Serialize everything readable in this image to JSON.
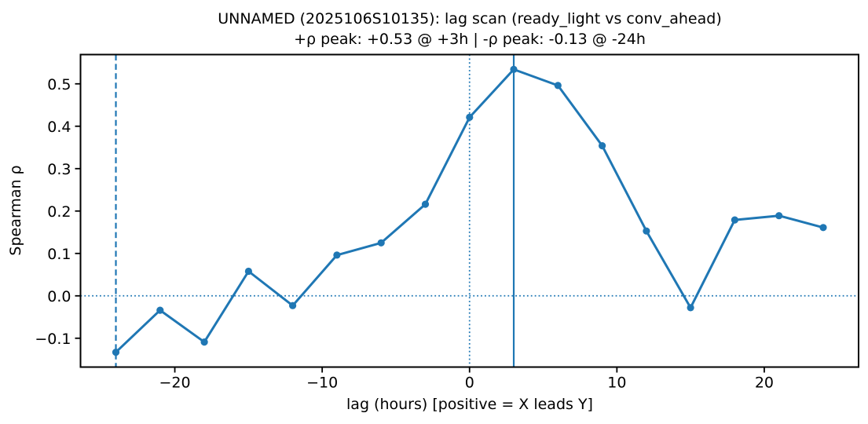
{
  "chart_data": {
    "type": "line",
    "title": "UNNAMED (2025106S10135): lag scan (ready_light vs conv_ahead)",
    "subtitle": "+ρ peak: +0.53 @ +3h | -ρ peak: -0.13 @ -24h",
    "xlabel": "lag (hours) [positive = X leads Y]",
    "ylabel": "Spearman ρ",
    "series": [
      {
        "name": "spearman_rho_vs_lag",
        "x": [
          -24,
          -21,
          -18,
          -15,
          -12,
          -9,
          -6,
          -3,
          0,
          3,
          6,
          9,
          12,
          15,
          18,
          21,
          24
        ],
        "y": [
          -0.133,
          -0.034,
          -0.109,
          0.058,
          -0.023,
          0.096,
          0.125,
          0.216,
          0.421,
          0.534,
          0.496,
          0.354,
          0.153,
          -0.028,
          0.179,
          0.189,
          0.161
        ]
      }
    ],
    "xlim": [
      -26.4,
      26.4
    ],
    "ylim": [
      -0.168,
      0.569
    ],
    "xticks": {
      "values": [
        -20,
        -10,
        0,
        10,
        20
      ],
      "labels": [
        "−20",
        "−10",
        "0",
        "10",
        "20"
      ]
    },
    "yticks": {
      "values": [
        0.5,
        0.4,
        0.3,
        0.2,
        0.1,
        0.0,
        -0.1
      ],
      "labels": [
        "0.5",
        "0.4",
        "0.3",
        "0.2",
        "0.1",
        "0.0",
        "−0.1"
      ]
    },
    "grid": "off",
    "legend": "none",
    "reference_lines": [
      {
        "name": "zero-rho-hline",
        "axis": "h",
        "value": 0,
        "style": "dotted"
      },
      {
        "name": "zero-lag-vline",
        "axis": "v",
        "value": 0,
        "style": "dotted"
      },
      {
        "name": "pos-peak-lag-vline",
        "axis": "v",
        "value": 3,
        "style": "solid"
      },
      {
        "name": "neg-peak-lag-vline",
        "axis": "v",
        "value": -24,
        "style": "dashed"
      }
    ],
    "peaks": {
      "positive": {
        "rho": "+0.53",
        "lag": "+3h"
      },
      "negative": {
        "rho": "-0.13",
        "lag": "-24h"
      }
    },
    "colors": {
      "line": "#1f77b4",
      "marker": "#1f77b4",
      "reference": "#1f77b4",
      "axis": "#000000",
      "text": "#000000",
      "background": "#ffffff"
    }
  }
}
